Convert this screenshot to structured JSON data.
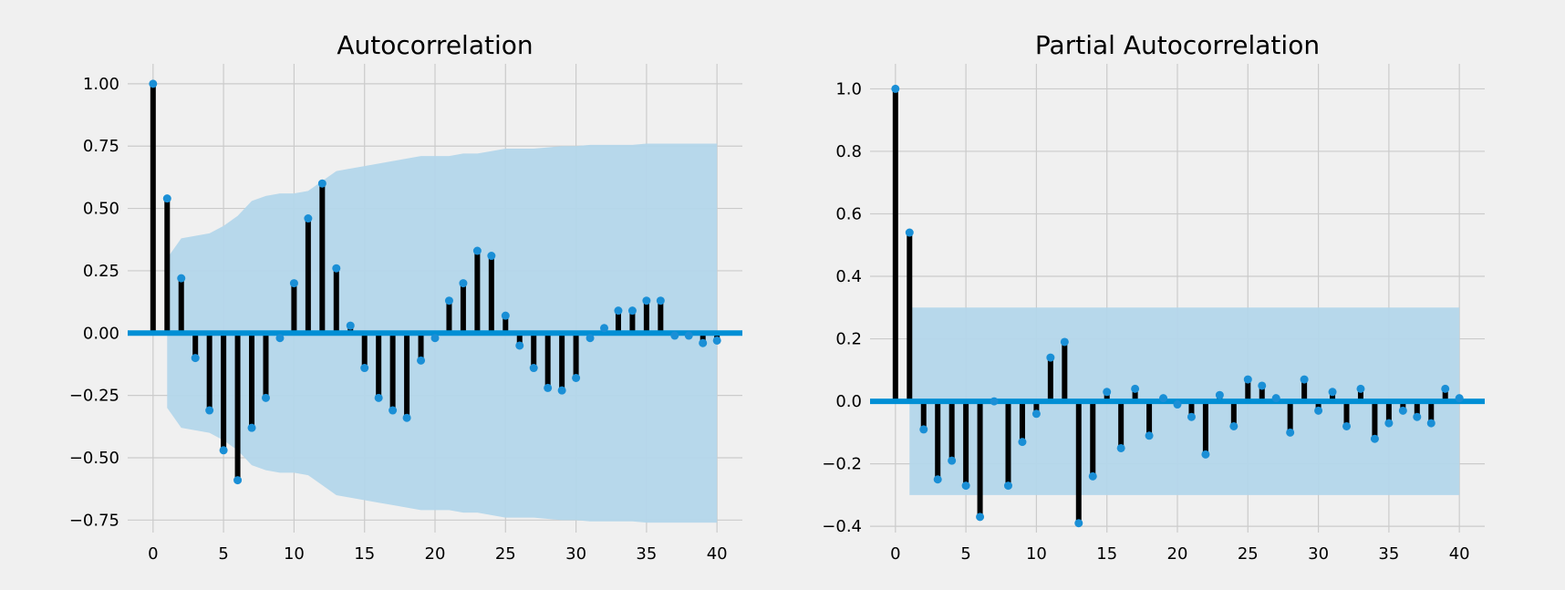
{
  "colors": {
    "background": "#f0f0f0",
    "grid": "#cbcbcb",
    "stem": "#000000",
    "marker": "#1a8fd6",
    "baseline": "#008fd5",
    "confidence_band": "#b3d6ea"
  },
  "chart_data": [
    {
      "type": "stem",
      "title": "Autocorrelation",
      "xlabel": "",
      "ylabel": "",
      "xlim": [
        -1.8,
        41.8
      ],
      "ylim": [
        -0.8,
        1.08
      ],
      "x_ticks": [
        0,
        5,
        10,
        15,
        20,
        25,
        30,
        35,
        40
      ],
      "y_ticks": [
        -0.75,
        -0.5,
        -0.25,
        0.0,
        0.25,
        0.5,
        0.75,
        1.0
      ],
      "x_tick_labels": [
        "0",
        "5",
        "10",
        "15",
        "20",
        "25",
        "30",
        "35",
        "40"
      ],
      "y_tick_labels": [
        "−0.75",
        "−0.50",
        "−0.25",
        "0.00",
        "0.25",
        "0.50",
        "0.75",
        "1.00"
      ],
      "grid": true,
      "lags": [
        0,
        1,
        2,
        3,
        4,
        5,
        6,
        7,
        8,
        9,
        10,
        11,
        12,
        13,
        14,
        15,
        16,
        17,
        18,
        19,
        20,
        21,
        22,
        23,
        24,
        25,
        26,
        27,
        28,
        29,
        30,
        31,
        32,
        33,
        34,
        35,
        36,
        37,
        38,
        39,
        40
      ],
      "values": [
        1.0,
        0.54,
        0.22,
        -0.1,
        -0.31,
        -0.47,
        -0.59,
        -0.38,
        -0.26,
        -0.02,
        0.2,
        0.46,
        0.6,
        0.26,
        0.03,
        -0.14,
        -0.26,
        -0.31,
        -0.34,
        -0.11,
        -0.02,
        0.13,
        0.2,
        0.33,
        0.31,
        0.07,
        -0.05,
        -0.14,
        -0.22,
        -0.23,
        -0.18,
        -0.02,
        0.02,
        0.09,
        0.09,
        0.13,
        0.13,
        -0.01,
        -0.01,
        -0.04,
        -0.03
      ],
      "confidence_band": {
        "lags": [
          1,
          2,
          3,
          4,
          5,
          6,
          7,
          8,
          9,
          10,
          11,
          12,
          13,
          14,
          15,
          16,
          17,
          18,
          19,
          20,
          21,
          22,
          23,
          24,
          25,
          26,
          27,
          28,
          29,
          30,
          31,
          32,
          33,
          34,
          35,
          36,
          37,
          38,
          39,
          40
        ],
        "upper": [
          0.3,
          0.38,
          0.39,
          0.4,
          0.43,
          0.47,
          0.53,
          0.55,
          0.56,
          0.56,
          0.57,
          0.61,
          0.65,
          0.66,
          0.67,
          0.68,
          0.69,
          0.7,
          0.71,
          0.71,
          0.71,
          0.72,
          0.72,
          0.73,
          0.74,
          0.74,
          0.74,
          0.745,
          0.75,
          0.75,
          0.755,
          0.755,
          0.755,
          0.755,
          0.76,
          0.76,
          0.76,
          0.76,
          0.76,
          0.76
        ]
      }
    },
    {
      "type": "stem",
      "title": "Partial Autocorrelation",
      "xlabel": "",
      "ylabel": "",
      "xlim": [
        -1.8,
        41.8
      ],
      "ylim": [
        -0.42,
        1.08
      ],
      "x_ticks": [
        0,
        5,
        10,
        15,
        20,
        25,
        30,
        35,
        40
      ],
      "y_ticks": [
        -0.4,
        -0.2,
        0.0,
        0.2,
        0.4,
        0.6,
        0.8,
        1.0
      ],
      "x_tick_labels": [
        "0",
        "5",
        "10",
        "15",
        "20",
        "25",
        "30",
        "35",
        "40"
      ],
      "y_tick_labels": [
        "−0.4",
        "−0.2",
        "0.0",
        "0.2",
        "0.4",
        "0.6",
        "0.8",
        "1.0"
      ],
      "grid": true,
      "lags": [
        0,
        1,
        2,
        3,
        4,
        5,
        6,
        7,
        8,
        9,
        10,
        11,
        12,
        13,
        14,
        15,
        16,
        17,
        18,
        19,
        20,
        21,
        22,
        23,
        24,
        25,
        26,
        27,
        28,
        29,
        30,
        31,
        32,
        33,
        34,
        35,
        36,
        37,
        38,
        39,
        40
      ],
      "values": [
        1.0,
        0.54,
        -0.09,
        -0.25,
        -0.19,
        -0.27,
        -0.37,
        0.0,
        -0.27,
        -0.13,
        -0.04,
        0.14,
        0.19,
        -0.39,
        -0.24,
        0.03,
        -0.15,
        0.04,
        -0.11,
        0.01,
        -0.01,
        -0.05,
        -0.17,
        0.02,
        -0.08,
        0.07,
        0.05,
        0.01,
        -0.1,
        0.07,
        -0.03,
        0.03,
        -0.08,
        0.04,
        -0.12,
        -0.07,
        -0.03,
        -0.05,
        -0.07,
        0.04,
        0.01
      ],
      "confidence_band": {
        "lags": [
          1,
          40
        ],
        "upper": [
          0.3,
          0.3
        ]
      }
    }
  ]
}
